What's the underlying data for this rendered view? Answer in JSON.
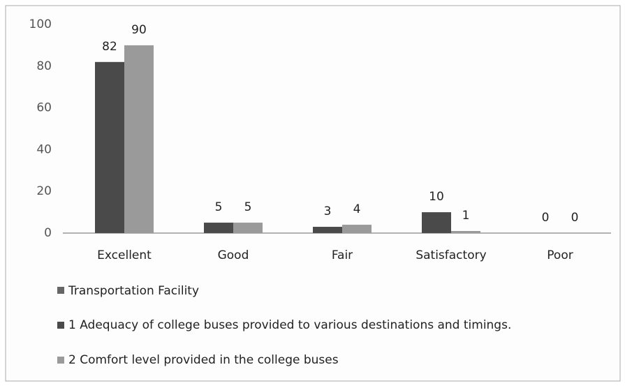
{
  "chart_data": {
    "type": "bar",
    "categories": [
      "Excellent",
      "Good",
      "Fair",
      "Satisfactory",
      "Poor"
    ],
    "legend_title": "Transportation Facility",
    "series": [
      {
        "name": "1 Adequacy of college buses provided to various destinations and timings.",
        "color": "#4a4a4a",
        "values": [
          82,
          5,
          3,
          10,
          0
        ]
      },
      {
        "name": "2 Comfort level provided in the college buses",
        "color": "#9a9a9a",
        "values": [
          90,
          5,
          4,
          1,
          0
        ]
      }
    ],
    "ylim": [
      0,
      100
    ],
    "yticks": [
      0,
      20,
      40,
      60,
      80,
      100
    ],
    "grid": false,
    "legend": "bottom-left"
  }
}
